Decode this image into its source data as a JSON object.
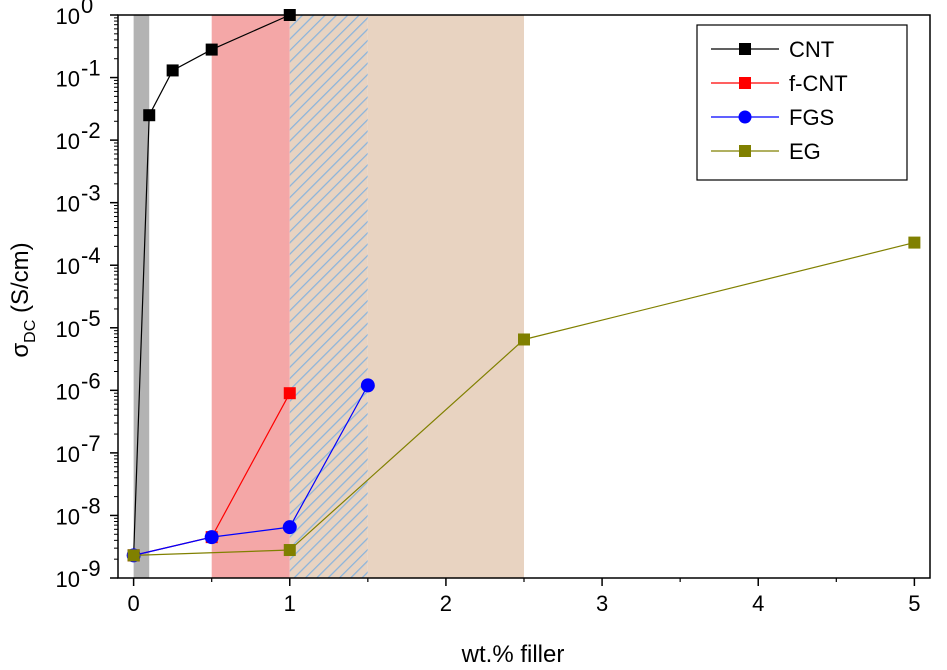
{
  "chart_data": {
    "type": "scatter",
    "xlabel": "wt.% filler",
    "ylabel": {
      "main": "σ",
      "sub": "DC",
      "units": "(S/cm)"
    },
    "xlim": [
      -0.1,
      5.1
    ],
    "ylim_exp": [
      -9,
      0
    ],
    "y_scale": "log",
    "x_ticks": [
      0,
      1,
      2,
      3,
      4,
      5
    ],
    "x_tick_labels": [
      "0",
      "1",
      "2",
      "3",
      "4",
      "5"
    ],
    "y_tick_exponents": [
      -9,
      -8,
      -7,
      -6,
      -5,
      -4,
      -3,
      -2,
      -1,
      0
    ],
    "y_tick_base": "10",
    "y_tick_exp_labels": [
      "-9",
      "-8",
      "-7",
      "-6",
      "-5",
      "-4",
      "-3",
      "-2",
      "-1",
      "0"
    ],
    "grid": false,
    "legend_position": "top-right",
    "shaded_regions": [
      {
        "x0": 0.0,
        "x1": 0.1,
        "color": "#b3b3b3",
        "pattern": "solid"
      },
      {
        "x0": 0.5,
        "x1": 1.0,
        "color": "#f4a7a7",
        "pattern": "solid"
      },
      {
        "x0": 1.0,
        "x1": 1.5,
        "color": "#a9c8e0",
        "pattern": "hatch"
      },
      {
        "x0": 1.5,
        "x1": 2.5,
        "color": "#e8d3c1",
        "pattern": "solid"
      }
    ],
    "series": [
      {
        "name": "CNT",
        "color": "#000000",
        "marker": "square",
        "x": [
          0,
          0.1,
          0.25,
          0.5,
          1.0
        ],
        "y": [
          2.3e-09,
          0.025,
          0.13,
          0.28,
          1.0
        ]
      },
      {
        "name": "f-CNT",
        "color": "#ff0000",
        "marker": "square",
        "x": [
          0,
          0.5,
          1.0
        ],
        "y": [
          2.3e-09,
          4.5e-09,
          9e-07
        ]
      },
      {
        "name": "FGS",
        "color": "#0000ff",
        "marker": "circle",
        "x": [
          0,
          0.5,
          1.0,
          1.5
        ],
        "y": [
          2.3e-09,
          4.5e-09,
          6.5e-09,
          1.2e-06
        ]
      },
      {
        "name": "EG",
        "color": "#808000",
        "marker": "square",
        "x": [
          0,
          1.0,
          2.5,
          5.0
        ],
        "y": [
          2.3e-09,
          2.8e-09,
          6.5e-06,
          0.00023
        ]
      }
    ]
  }
}
